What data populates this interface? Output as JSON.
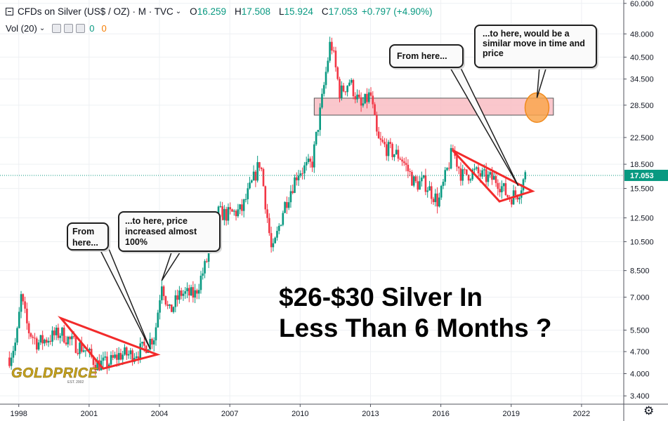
{
  "header": {
    "symbol": "CFDs on Silver (US$ / OZ) · M · TVC",
    "open_label": "O",
    "open": "16.259",
    "high_label": "H",
    "high": "17.508",
    "low_label": "L",
    "low": "15.924",
    "close_label": "C",
    "close": "17.053",
    "change": "+0.797 (+4.90%)"
  },
  "volume": {
    "label": "Vol (20)",
    "value1": "0",
    "value2": "0"
  },
  "annotations": {
    "bubble1": "From here...",
    "bubble2": "...to here, price increased almost 100%",
    "bubble3": "From here...",
    "bubble4": "...to here, would be a similar move in time and price",
    "headline_line1": "$26-$30 Silver In",
    "headline_line2": "Less Than 6 Months ?"
  },
  "logo": {
    "text": "GOLDPRICE",
    "est": "EST. 2002"
  },
  "colors": {
    "up": "#089981",
    "down": "#f23645",
    "line": "#f22b2b",
    "zone": "#f9b9bf",
    "circle": "#f9a64d",
    "grid": "#eef0f3"
  },
  "chart_data": {
    "type": "candlestick",
    "scale": "log",
    "x_ticks": [
      "1998",
      "2001",
      "2004",
      "2007",
      "2010",
      "2013",
      "2016",
      "2019",
      "2022"
    ],
    "y_ticks": [
      "60.000",
      "48.000",
      "40.500",
      "34.500",
      "28.500",
      "22.500",
      "18.500",
      "15.500",
      "12.500",
      "10.500",
      "8.500",
      "7.000",
      "5.500",
      "4.700",
      "4.000",
      "3.400"
    ],
    "y_tick_values": [
      60,
      48,
      40.5,
      34.5,
      28.5,
      22.5,
      18.5,
      15.5,
      12.5,
      10.5,
      8.5,
      7.0,
      5.5,
      4.7,
      4.0,
      3.4
    ],
    "xlim": [
      1997.2,
      2023.8
    ],
    "last_price": "17.053",
    "last_price_value": 17.053,
    "price_path": [
      [
        1997.6,
        4.5
      ],
      [
        1997.9,
        5.1
      ],
      [
        1998.1,
        7.0
      ],
      [
        1998.4,
        5.5
      ],
      [
        1998.8,
        5.0
      ],
      [
        1999.3,
        5.2
      ],
      [
        1999.8,
        5.4
      ],
      [
        2000.3,
        5.0
      ],
      [
        2000.8,
        4.8
      ],
      [
        2001.3,
        4.3
      ],
      [
        2001.8,
        4.3
      ],
      [
        2002.3,
        4.6
      ],
      [
        2002.8,
        4.6
      ],
      [
        2003.3,
        4.8
      ],
      [
        2003.8,
        5.3
      ],
      [
        2004.1,
        7.9
      ],
      [
        2004.4,
        6.2
      ],
      [
        2004.9,
        7.2
      ],
      [
        2005.5,
        7.1
      ],
      [
        2006.0,
        9.0
      ],
      [
        2006.4,
        13.0
      ],
      [
        2006.9,
        12.8
      ],
      [
        2007.5,
        13.2
      ],
      [
        2008.0,
        16.5
      ],
      [
        2008.3,
        19.0
      ],
      [
        2008.8,
        9.5
      ],
      [
        2009.3,
        13.5
      ],
      [
        2009.9,
        17.5
      ],
      [
        2010.5,
        18.5
      ],
      [
        2010.9,
        28.5
      ],
      [
        2011.3,
        46.0
      ],
      [
        2011.7,
        31.0
      ],
      [
        2012.1,
        34.0
      ],
      [
        2012.6,
        28.0
      ],
      [
        2013.0,
        31.0
      ],
      [
        2013.3,
        22.0
      ],
      [
        2013.8,
        20.5
      ],
      [
        2014.3,
        19.5
      ],
      [
        2014.9,
        16.0
      ],
      [
        2015.3,
        16.2
      ],
      [
        2015.9,
        14.0
      ],
      [
        2016.5,
        20.5
      ],
      [
        2016.9,
        17.0
      ],
      [
        2017.4,
        17.5
      ],
      [
        2017.9,
        16.8
      ],
      [
        2018.4,
        16.5
      ],
      [
        2018.9,
        14.5
      ],
      [
        2019.3,
        15.0
      ],
      [
        2019.6,
        17.05
      ]
    ],
    "resistance_zone": {
      "from_x": 2010.6,
      "to_x": 2020.8,
      "y_low": 26.5,
      "y_high": 30.0
    },
    "target_circle": {
      "x": 2020.1,
      "y": 28.0
    },
    "triangle1": [
      [
        1999.8,
        6.0
      ],
      [
        2003.9,
        4.6
      ],
      [
        2001.6,
        4.15
      ]
    ],
    "triangle2": [
      [
        2016.5,
        20.5
      ],
      [
        2019.9,
        15.2
      ],
      [
        2018.5,
        14.1
      ]
    ]
  }
}
